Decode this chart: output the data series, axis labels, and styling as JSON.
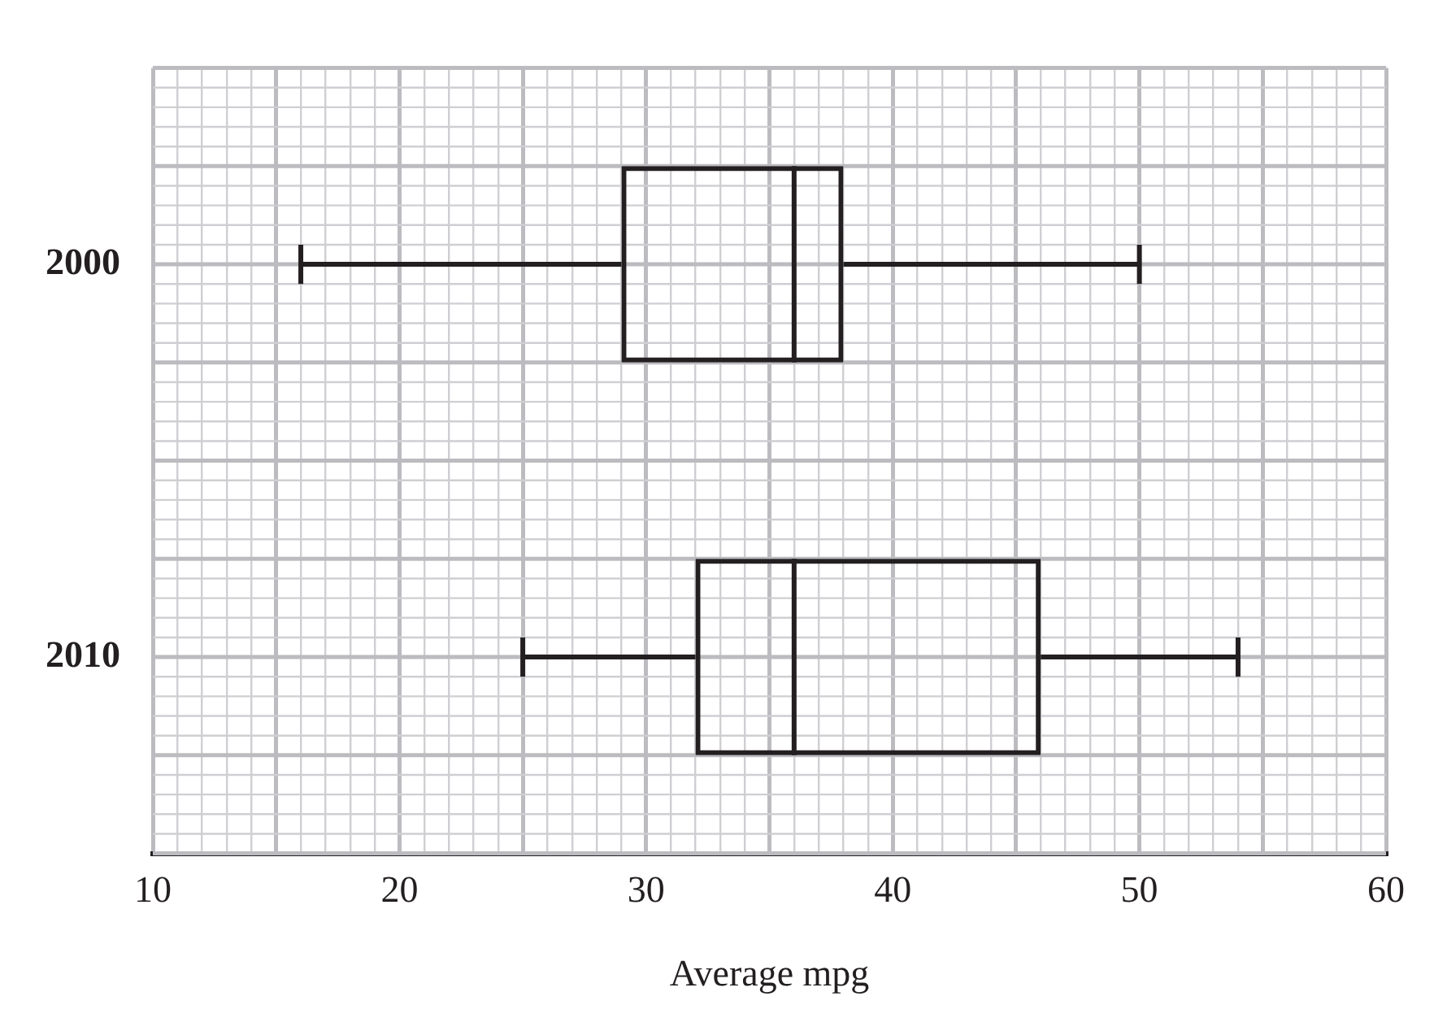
{
  "chart_data": {
    "type": "box",
    "orientation": "horizontal",
    "xlabel": "Average mpg",
    "categories": [
      "2000",
      "2010"
    ],
    "boxes": [
      {
        "low": 16,
        "q1": 29,
        "median": 36,
        "q3": 38,
        "high": 50
      },
      {
        "low": 25,
        "q1": 32,
        "median": 36,
        "q3": 46,
        "high": 54
      }
    ],
    "color": "#231f20",
    "grid": true,
    "legend": false,
    "xlim": [
      10,
      60
    ],
    "xticks": [
      10,
      {
        "value": 11,
        "label": null
      },
      {
        "value": 12,
        "label": null
      },
      {
        "value": 13,
        "label": null
      },
      {
        "value": 14,
        "label": null
      },
      {
        "value": 15,
        "label": null
      },
      {
        "value": 16,
        "label": null
      },
      {
        "value": 17,
        "label": null
      },
      {
        "value": 18,
        "label": null
      },
      {
        "value": 19,
        "label": null
      },
      20,
      {
        "value": 21,
        "label": null
      },
      {
        "value": 22,
        "label": null
      },
      {
        "value": 23,
        "label": null
      },
      {
        "value": 24,
        "label": null
      },
      {
        "value": 25,
        "label": null
      },
      {
        "value": 26,
        "label": null
      },
      {
        "value": 27,
        "label": null
      },
      {
        "value": 28,
        "label": null
      },
      {
        "value": 29,
        "label": null
      },
      30,
      {
        "value": 31,
        "label": null
      },
      {
        "value": 32,
        "label": null
      },
      {
        "value": 33,
        "label": null
      },
      {
        "value": 34,
        "label": null
      },
      {
        "value": 35,
        "label": null
      },
      {
        "value": 36,
        "label": null
      },
      {
        "value": 37,
        "label": null
      },
      {
        "value": 38,
        "label": null
      },
      {
        "value": 39,
        "label": null
      },
      40,
      {
        "value": 41,
        "label": null
      },
      {
        "value": 42,
        "label": null
      },
      {
        "value": 43,
        "label": null
      },
      {
        "value": 44,
        "label": null
      },
      {
        "value": 45,
        "label": null
      },
      {
        "value": 46,
        "label": null
      },
      {
        "value": 47,
        "label": null
      },
      {
        "value": 48,
        "label": null
      },
      {
        "value": 49,
        "label": null
      },
      50,
      {
        "value": 51,
        "label": null
      },
      {
        "value": 52,
        "label": null
      },
      {
        "value": 53,
        "label": null
      },
      {
        "value": 54,
        "label": null
      },
      {
        "value": 55,
        "label": null
      },
      {
        "value": 56,
        "label": null
      },
      {
        "value": 57,
        "label": null
      },
      {
        "value": 58,
        "label": null
      },
      {
        "value": 59,
        "label": null
      },
      60
    ]
  }
}
